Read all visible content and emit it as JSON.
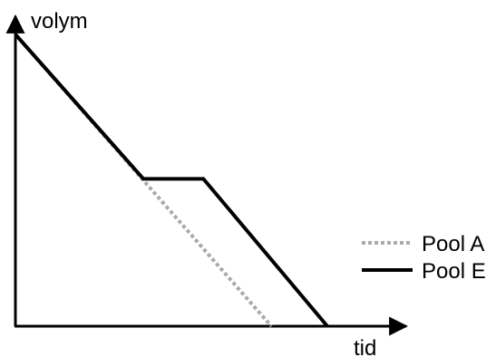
{
  "chart_data": {
    "type": "line",
    "title": "",
    "xlabel": "tid",
    "ylabel": "volym",
    "xlim": [
      0,
      10
    ],
    "ylim": [
      0,
      10
    ],
    "grid": false,
    "legend": "right",
    "series": [
      {
        "name": "Pool A",
        "color": "#aaaaaa",
        "style": "dotted",
        "x": [
          0,
          6.4
        ],
        "y": [
          10,
          0
        ]
      },
      {
        "name": "Pool E",
        "color": "#000000",
        "style": "solid",
        "x": [
          0,
          3.2,
          4.7,
          7.8
        ],
        "y": [
          10,
          5.05,
          5.05,
          0
        ]
      }
    ]
  }
}
